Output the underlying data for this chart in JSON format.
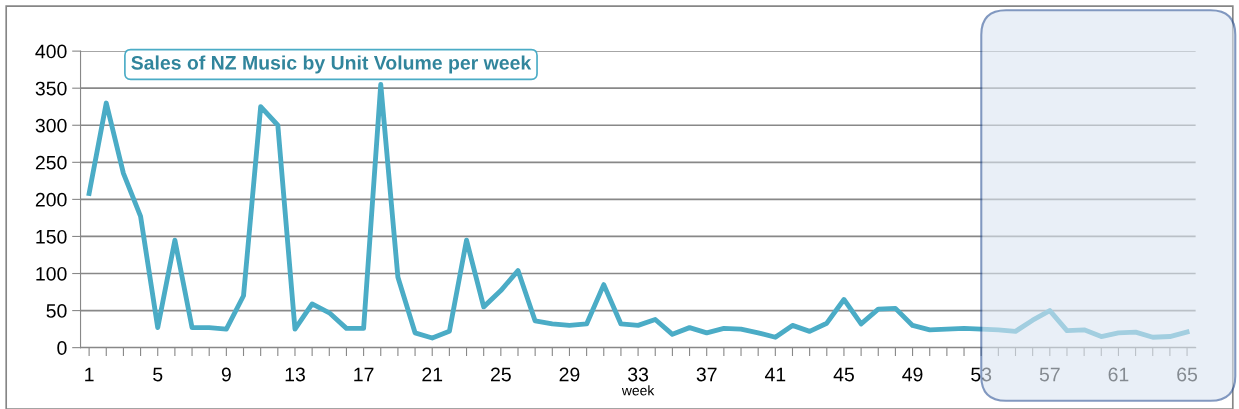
{
  "chart_data": {
    "type": "line",
    "title": "Sales of NZ Music by Unit Volume per week",
    "xlabel": "week",
    "categories": [
      "1",
      null,
      null,
      null,
      "5",
      null,
      null,
      null,
      "9",
      null,
      null,
      null,
      "13",
      null,
      null,
      null,
      "17",
      null,
      null,
      null,
      "21",
      null,
      null,
      null,
      "25",
      null,
      null,
      null,
      "29",
      null,
      null,
      null,
      "33",
      null,
      null,
      null,
      "37",
      null,
      null,
      null,
      "41",
      null,
      null,
      null,
      "45",
      null,
      null,
      null,
      "49",
      null,
      null,
      null,
      "53",
      null,
      null,
      null,
      "57",
      null,
      null,
      null,
      "61",
      null,
      null,
      null,
      "65"
    ],
    "series": [
      {
        "color": "#4bacc6",
        "values": [
          208,
          330,
          235,
          177,
          27,
          145,
          27,
          27,
          25,
          70,
          325,
          300,
          25,
          59,
          47,
          26,
          26,
          355,
          95,
          20,
          13,
          22,
          145,
          55,
          77,
          104,
          36,
          32,
          30,
          32,
          85,
          32,
          30,
          38,
          18,
          27,
          20,
          26,
          25,
          20,
          14,
          30,
          22,
          33,
          65,
          32,
          52,
          53,
          30,
          24,
          25,
          26,
          25,
          24,
          22,
          37,
          50,
          23,
          24,
          15,
          20,
          21,
          14,
          15,
          21
        ]
      }
    ],
    "ylim": [
      0,
      400
    ],
    "yticks": [
      0,
      50,
      100,
      150,
      200,
      250,
      300,
      350,
      400
    ],
    "grid": "y",
    "legend": false,
    "marker": "none",
    "line_style": "solid"
  }
}
